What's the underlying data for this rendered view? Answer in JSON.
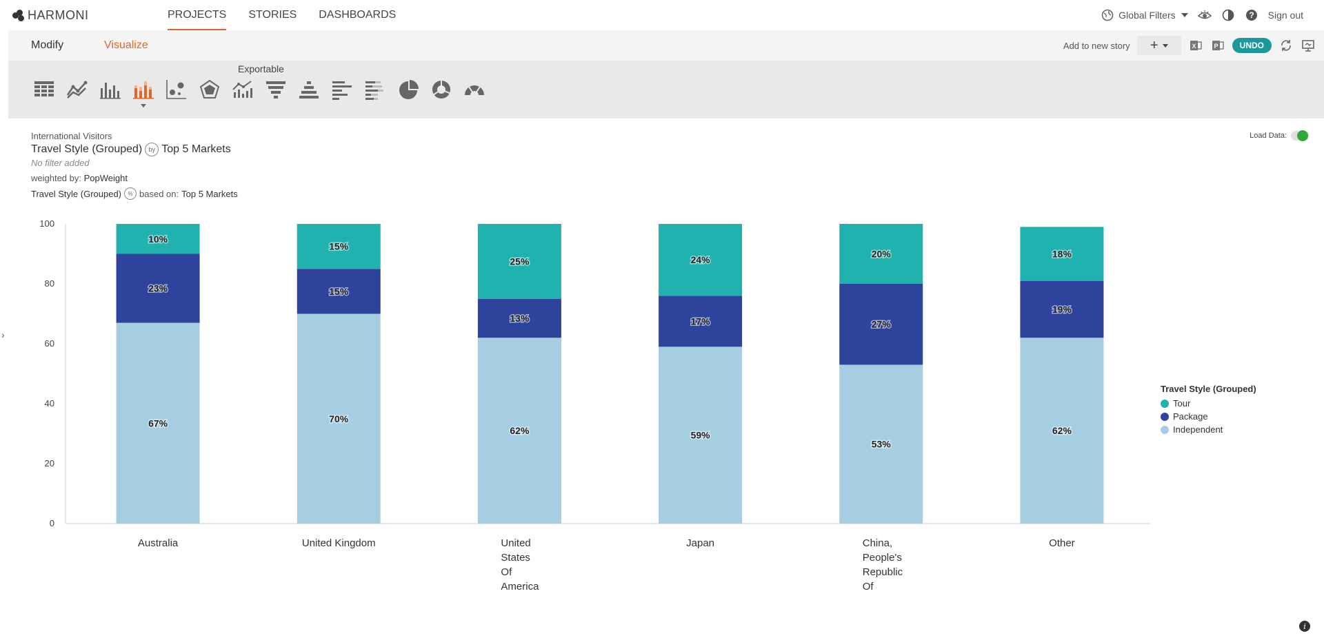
{
  "app": {
    "logo_text": "HARMONI"
  },
  "nav": {
    "tabs": [
      {
        "label": "PROJECTS",
        "active": true
      },
      {
        "label": "STORIES",
        "active": false
      },
      {
        "label": "DASHBOARDS",
        "active": false
      }
    ],
    "global_filters": "Global Filters",
    "sign_out": "Sign out"
  },
  "subbar": {
    "modify": "Modify",
    "visualize": "Visualize",
    "add_to_story": "Add to new story",
    "undo": "UNDO"
  },
  "typebar": {
    "exportable": "Exportable",
    "types": [
      "table",
      "line",
      "bar",
      "stacked-bar",
      "scatter",
      "radar",
      "line-bar",
      "funnel",
      "pyramid",
      "horizontal-bar",
      "horizontal-stacked-bar",
      "pie",
      "donut",
      "gauge"
    ],
    "active": "stacked-bar"
  },
  "meta": {
    "supertitle": "International Visitors",
    "title_left": "Travel Style (Grouped)",
    "by_icon": "by",
    "title_right": "Top 5 Markets",
    "filter": "No filter added",
    "weighted_label": "weighted by:",
    "weighted_value": "PopWeight",
    "based_left": "Travel Style (Grouped)",
    "pct_icon": "%",
    "based_label": "based on:",
    "based_value": "Top 5 Markets"
  },
  "load_data": "Load Data:",
  "legend": {
    "title": "Travel Style (Grouped)",
    "items": [
      {
        "label": "Tour",
        "color": "#20b2ae"
      },
      {
        "label": "Package",
        "color": "#2e439b"
      },
      {
        "label": "Independent",
        "color": "#a6cee3"
      }
    ]
  },
  "chart_data": {
    "type": "bar",
    "stacked": true,
    "categories": [
      "Australia",
      "United Kingdom",
      "United States Of America",
      "Japan",
      "China, People's Republic Of",
      "Other"
    ],
    "category_lines": [
      [
        "Australia"
      ],
      [
        "United Kingdom"
      ],
      [
        "United",
        "States",
        "Of",
        "America"
      ],
      [
        "Japan"
      ],
      [
        "China,",
        "People's",
        "Republic",
        "Of"
      ],
      [
        "Other"
      ]
    ],
    "series": [
      {
        "name": "Independent",
        "color": "#a6cee3",
        "values": [
          67,
          70,
          62,
          59,
          53,
          62
        ]
      },
      {
        "name": "Package",
        "color": "#2e439b",
        "values": [
          23,
          15,
          13,
          17,
          27,
          19
        ]
      },
      {
        "name": "Tour",
        "color": "#20b2ae",
        "values": [
          10,
          15,
          25,
          24,
          20,
          18
        ]
      }
    ],
    "ylim": [
      0,
      100
    ],
    "yticks": [
      0,
      20,
      40,
      60,
      80,
      100
    ],
    "data_label_suffix": "%",
    "legend_position": "right"
  }
}
